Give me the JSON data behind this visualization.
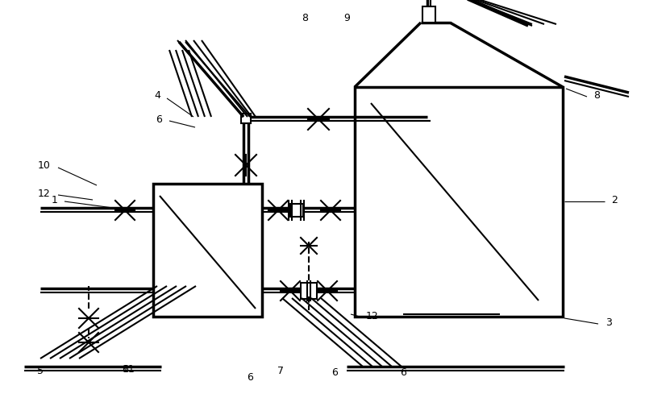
{
  "bg": "#ffffff",
  "lc": "#000000",
  "lw": 1.5,
  "tlw": 2.5,
  "fs": 9,
  "figw": 8.0,
  "figh": 4.94,
  "dpi": 100
}
